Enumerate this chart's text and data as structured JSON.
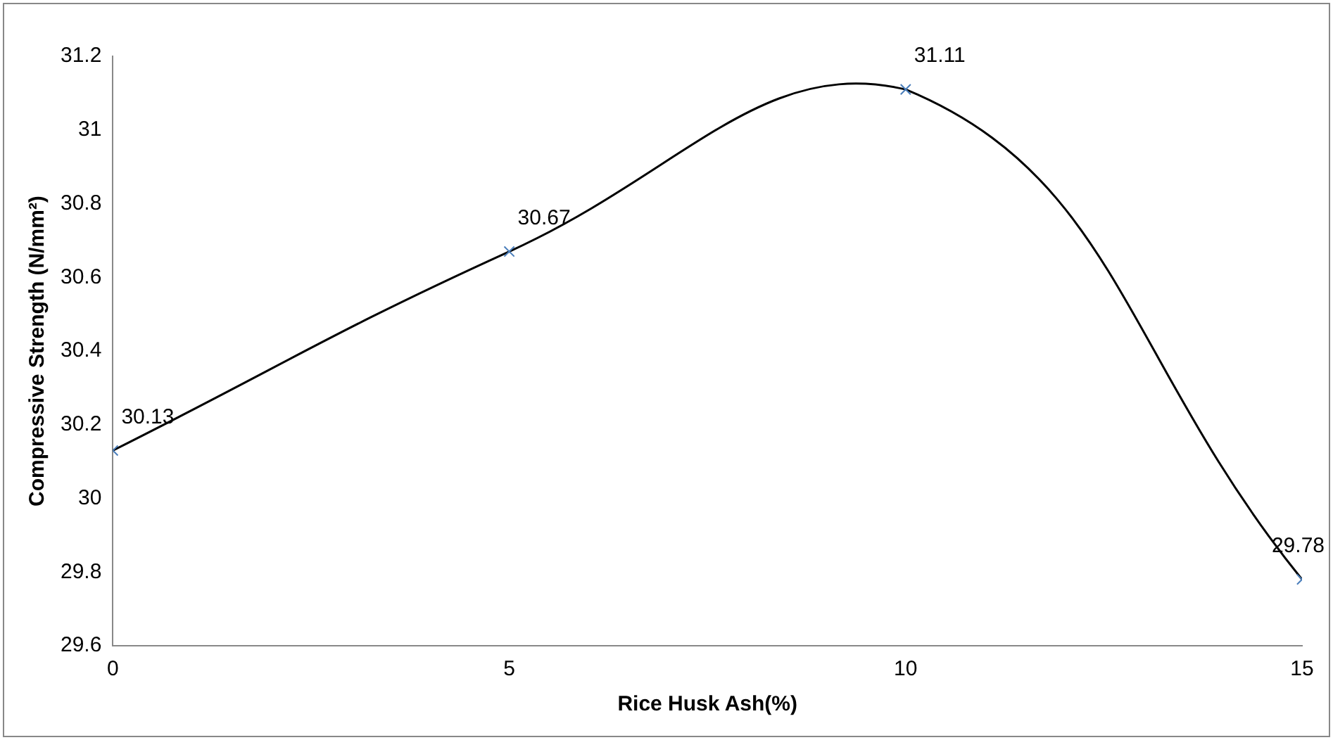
{
  "chart_data": {
    "type": "line",
    "xlabel": "Rice Husk Ash(%)",
    "ylabel": "Compressive Strength (N/mm²)",
    "x": [
      0,
      5,
      10,
      15
    ],
    "series": [
      {
        "color": "#000000",
        "values": [
          30.13,
          30.67,
          31.11,
          29.78
        ]
      }
    ],
    "xlim": [
      0,
      15
    ],
    "xticks": [
      0,
      5,
      10,
      15
    ],
    "ylim": [
      29.6,
      31.2
    ],
    "yticks": [
      29.6,
      29.8,
      30,
      30.2,
      30.4,
      30.6,
      30.8,
      31,
      31.2
    ],
    "grid": false,
    "legend": false,
    "marker": "cross",
    "line_style": "solid",
    "data_labels": true
  }
}
